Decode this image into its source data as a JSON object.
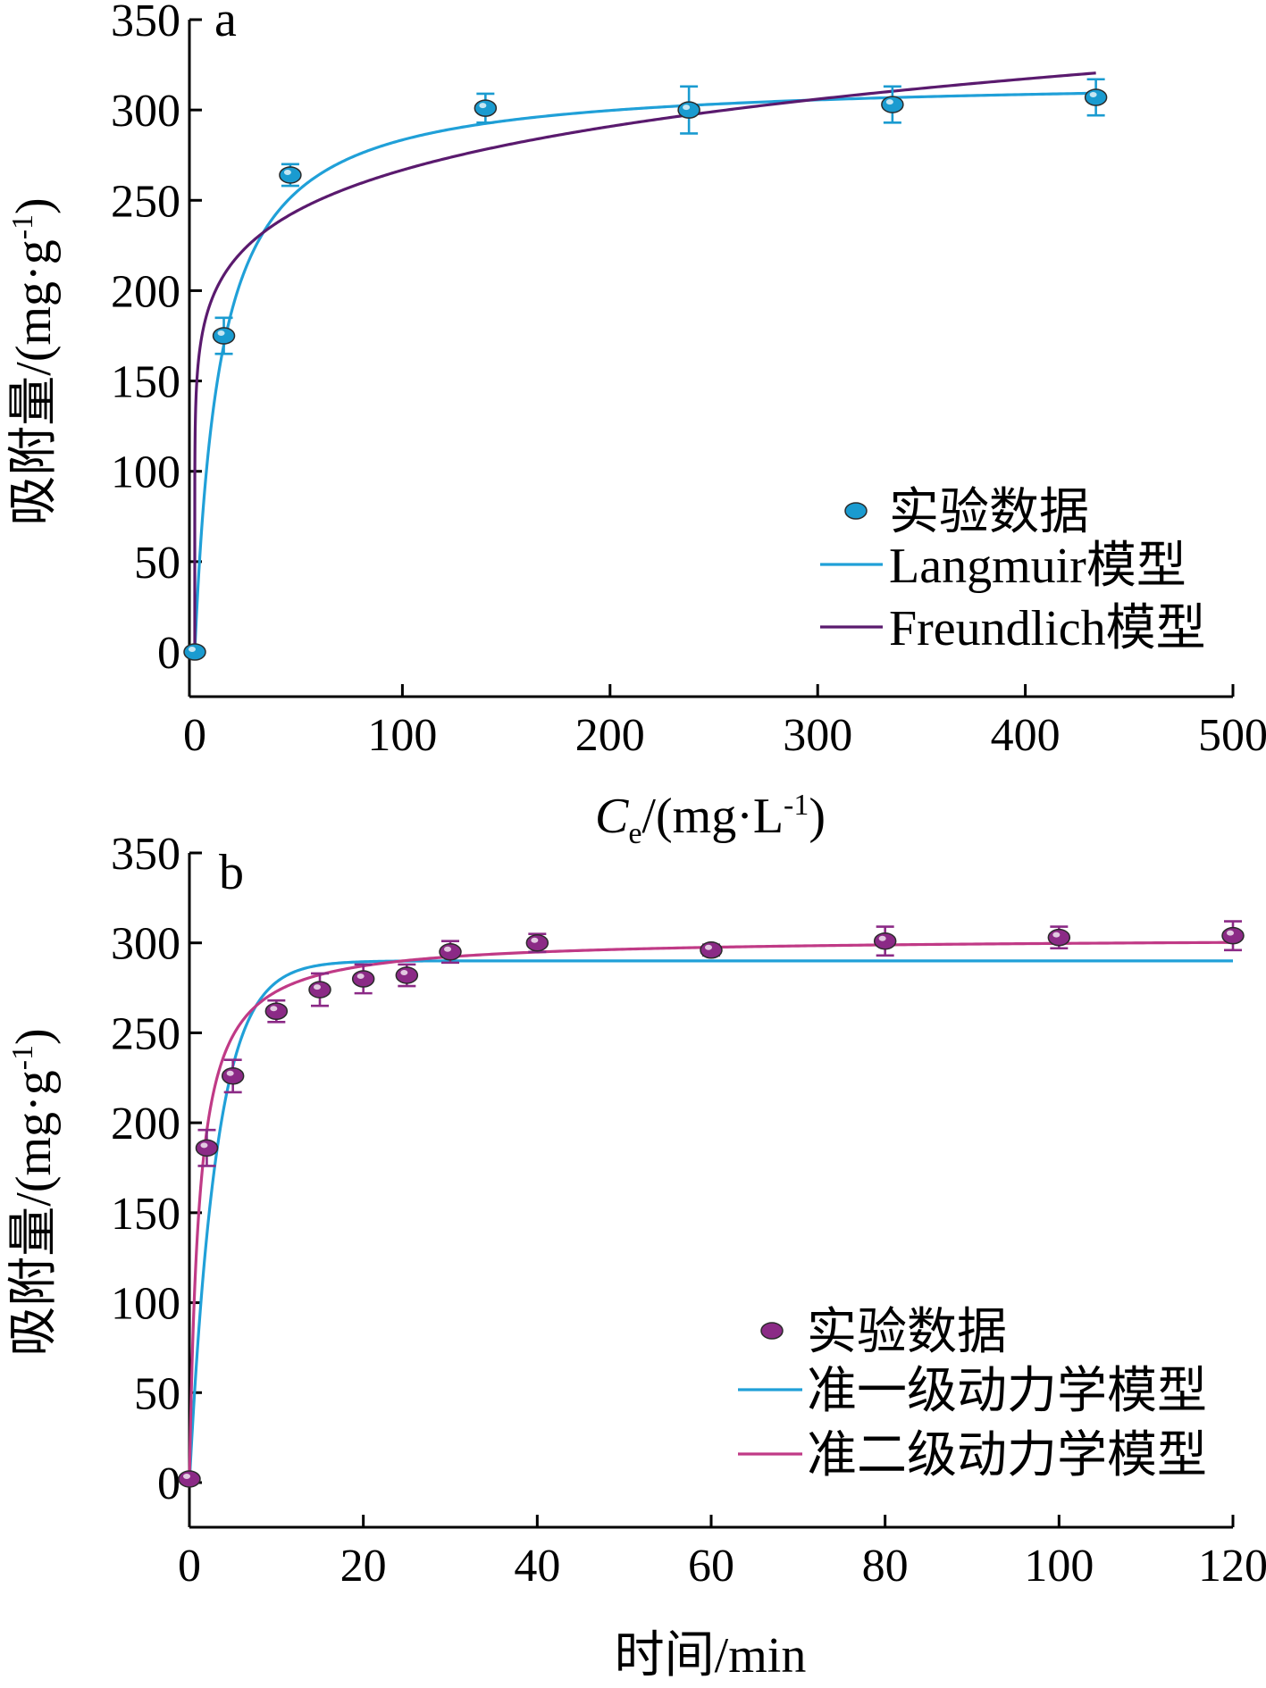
{
  "chart_data": [
    {
      "type": "scatter",
      "panel_label": "a",
      "xlabel": {
        "main": "C",
        "sub": "e",
        "unit": "/(mg·L",
        "sup": "-1",
        "close": ")"
      },
      "ylabel": {
        "main": "吸附量/(mg·g",
        "sup": "-1",
        "close": ")"
      },
      "xlim": [
        0,
        500
      ],
      "ylim": [
        0,
        350
      ],
      "xticks": [
        "0",
        "100",
        "200",
        "300",
        "400",
        "500"
      ],
      "yticks": [
        "0",
        "50",
        "100",
        "150",
        "200",
        "250",
        "300",
        "350"
      ],
      "legend_position": "bottom-right",
      "colors": {
        "data": "#1a9bd0",
        "fit1": "#20a0d8",
        "fit2": "#5a1a6e"
      },
      "series": [
        {
          "name": "实验数据",
          "kind": "points",
          "x": [
            0,
            14,
            46,
            140,
            238,
            336,
            434
          ],
          "y": [
            0,
            175,
            264,
            301,
            300,
            303,
            307
          ],
          "err": [
            0,
            10,
            6,
            8,
            13,
            10,
            10
          ]
        },
        {
          "name": "Langmuir模型",
          "kind": "line",
          "model": "langmuir",
          "params": {
            "qm": 318,
            "KL": 0.082
          }
        },
        {
          "name": "Freundlich模型",
          "kind": "line",
          "model": "freundlich",
          "params": {
            "KF": 150,
            "n": 8.0
          }
        }
      ]
    },
    {
      "type": "scatter",
      "panel_label": "b",
      "xlabel": {
        "main": "时间/min"
      },
      "ylabel": {
        "main": "吸附量/(mg·g",
        "sup": "-1",
        "close": ")"
      },
      "xlim": [
        0,
        120
      ],
      "ylim": [
        0,
        350
      ],
      "xticks": [
        "0",
        "20",
        "40",
        "60",
        "80",
        "100",
        "120"
      ],
      "yticks": [
        "0",
        "50",
        "100",
        "150",
        "200",
        "250",
        "300",
        "350"
      ],
      "legend_position": "bottom-right",
      "colors": {
        "data": "#8b2a86",
        "fit1": "#20a0d8",
        "fit2": "#c03a86"
      },
      "series": [
        {
          "name": "实验数据",
          "kind": "points",
          "x": [
            0,
            2,
            5,
            10,
            15,
            20,
            25,
            30,
            40,
            60,
            80,
            100,
            120
          ],
          "y": [
            2,
            186,
            226,
            262,
            274,
            280,
            282,
            295,
            300,
            296,
            301,
            303,
            304
          ],
          "err": [
            0,
            10,
            9,
            6,
            9,
            8,
            6,
            6,
            5,
            3,
            8,
            6,
            8
          ]
        },
        {
          "name": "准一级动力学模型",
          "kind": "line",
          "model": "pfo",
          "params": {
            "qe": 290,
            "k1": 0.32
          }
        },
        {
          "name": "准二级动力学模型",
          "kind": "line",
          "model": "pso",
          "params": {
            "qe": 303,
            "k2": 0.003
          }
        }
      ]
    }
  ]
}
